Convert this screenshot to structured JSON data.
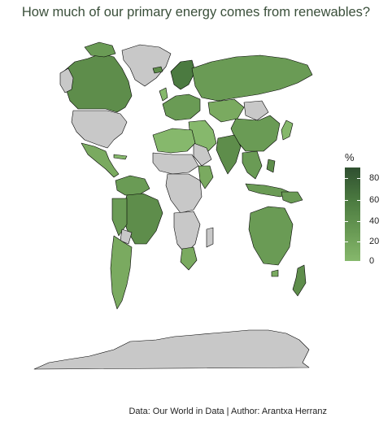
{
  "title": "How much of our primary energy comes from renewables?",
  "legend": {
    "title": "%",
    "ticks": [
      "80",
      "60",
      "40",
      "20",
      "0"
    ],
    "colors": {
      "high": "#2f4f30",
      "low": "#86b86c",
      "no_data": "#c8c8c8",
      "border": "#000000"
    }
  },
  "caption": "Data: Our World in Data | Author: Arantxa Herranz"
}
